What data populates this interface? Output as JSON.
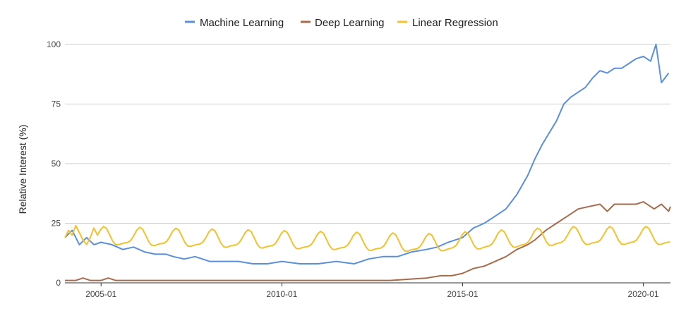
{
  "chart_data": {
    "type": "line",
    "title": "",
    "xlabel": "",
    "ylabel": "Relative Interest (%)",
    "ylim": [
      0,
      100
    ],
    "yticks": [
      0,
      25,
      50,
      75,
      100
    ],
    "xlim": [
      2004.0,
      2020.75
    ],
    "xticks": [
      {
        "value": 2005.0,
        "label": "2005-01"
      },
      {
        "value": 2010.0,
        "label": "2010-01"
      },
      {
        "value": 2015.0,
        "label": "2015-01"
      },
      {
        "value": 2020.0,
        "label": "2020-01"
      }
    ],
    "grid": true,
    "legend_position": "top-center",
    "series": [
      {
        "name": "Machine Learning",
        "color": "#5b8fd9",
        "points": [
          [
            2004.0,
            19
          ],
          [
            2004.2,
            22
          ],
          [
            2004.4,
            16
          ],
          [
            2004.6,
            19
          ],
          [
            2004.8,
            16
          ],
          [
            2005.0,
            17
          ],
          [
            2005.3,
            16
          ],
          [
            2005.6,
            14
          ],
          [
            2005.9,
            15
          ],
          [
            2006.2,
            13
          ],
          [
            2006.5,
            12
          ],
          [
            2006.8,
            12
          ],
          [
            2007.0,
            11
          ],
          [
            2007.3,
            10
          ],
          [
            2007.6,
            11
          ],
          [
            2008.0,
            9
          ],
          [
            2008.4,
            9
          ],
          [
            2008.8,
            9
          ],
          [
            2009.2,
            8
          ],
          [
            2009.6,
            8
          ],
          [
            2010.0,
            9
          ],
          [
            2010.5,
            8
          ],
          [
            2011.0,
            8
          ],
          [
            2011.5,
            9
          ],
          [
            2012.0,
            8
          ],
          [
            2012.4,
            10
          ],
          [
            2012.8,
            11
          ],
          [
            2013.2,
            11
          ],
          [
            2013.6,
            13
          ],
          [
            2014.0,
            14
          ],
          [
            2014.3,
            15
          ],
          [
            2014.6,
            17
          ],
          [
            2015.0,
            19
          ],
          [
            2015.3,
            23
          ],
          [
            2015.6,
            25
          ],
          [
            2015.9,
            28
          ],
          [
            2016.2,
            31
          ],
          [
            2016.5,
            37
          ],
          [
            2016.8,
            45
          ],
          [
            2017.0,
            52
          ],
          [
            2017.2,
            58
          ],
          [
            2017.4,
            63
          ],
          [
            2017.6,
            68
          ],
          [
            2017.8,
            75
          ],
          [
            2018.0,
            78
          ],
          [
            2018.2,
            80
          ],
          [
            2018.4,
            82
          ],
          [
            2018.6,
            86
          ],
          [
            2018.8,
            89
          ],
          [
            2019.0,
            88
          ],
          [
            2019.2,
            90
          ],
          [
            2019.4,
            90
          ],
          [
            2019.6,
            92
          ],
          [
            2019.8,
            94
          ],
          [
            2020.0,
            95
          ],
          [
            2020.2,
            93
          ],
          [
            2020.35,
            100
          ],
          [
            2020.5,
            84
          ],
          [
            2020.7,
            88
          ]
        ]
      },
      {
        "name": "Deep Learning",
        "color": "#a66b4a",
        "points": [
          [
            2004.0,
            1
          ],
          [
            2004.3,
            1
          ],
          [
            2004.5,
            2
          ],
          [
            2004.7,
            1
          ],
          [
            2005.0,
            1
          ],
          [
            2005.2,
            2
          ],
          [
            2005.4,
            1
          ],
          [
            2006.0,
            1
          ],
          [
            2008.0,
            1
          ],
          [
            2010.0,
            1
          ],
          [
            2012.0,
            1
          ],
          [
            2013.0,
            1
          ],
          [
            2013.5,
            1.5
          ],
          [
            2014.0,
            2
          ],
          [
            2014.4,
            3
          ],
          [
            2014.7,
            3
          ],
          [
            2015.0,
            4
          ],
          [
            2015.3,
            6
          ],
          [
            2015.6,
            7
          ],
          [
            2015.9,
            9
          ],
          [
            2016.2,
            11
          ],
          [
            2016.5,
            14
          ],
          [
            2016.8,
            16
          ],
          [
            2017.0,
            18
          ],
          [
            2017.3,
            22
          ],
          [
            2017.6,
            25
          ],
          [
            2017.9,
            28
          ],
          [
            2018.2,
            31
          ],
          [
            2018.5,
            32
          ],
          [
            2018.8,
            33
          ],
          [
            2019.0,
            30
          ],
          [
            2019.2,
            33
          ],
          [
            2019.5,
            33
          ],
          [
            2019.8,
            33
          ],
          [
            2020.0,
            34
          ],
          [
            2020.3,
            31
          ],
          [
            2020.5,
            33
          ],
          [
            2020.7,
            30
          ],
          [
            2020.75,
            32
          ]
        ]
      },
      {
        "name": "Linear Regression",
        "color": "#f2c12e",
        "points": [
          [
            2004.0,
            19
          ],
          [
            2004.1,
            22
          ],
          [
            2004.2,
            20
          ],
          [
            2004.3,
            24
          ],
          [
            2004.4,
            21
          ],
          [
            2004.5,
            18
          ],
          [
            2004.6,
            16
          ],
          [
            2004.7,
            19
          ],
          [
            2004.8,
            23
          ],
          [
            2004.9,
            20
          ]
        ],
        "seasonal": {
          "base_start": 19,
          "base_2014": 16,
          "base_end": 19,
          "amplitude": 3.5
        }
      }
    ]
  }
}
